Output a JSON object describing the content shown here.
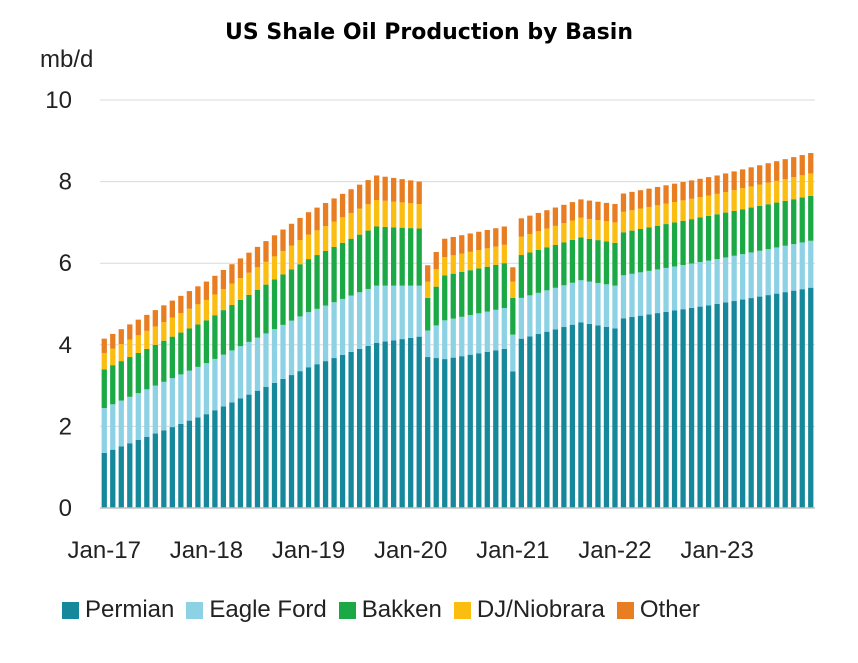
{
  "chart_data": {
    "type": "bar",
    "stacked": true,
    "title": "US Shale Oil Production by Basin",
    "ylabel": "mb/d",
    "xlabel": "",
    "ylim": [
      0,
      10
    ],
    "yticks": [
      0,
      2,
      4,
      6,
      8,
      10
    ],
    "x_start": "Jan-17",
    "x_end": "Dec-23",
    "xtick_labels": [
      "Jan-17",
      "Jan-18",
      "Jan-19",
      "Jan-20",
      "Jan-21",
      "Jan-22",
      "Jan-23"
    ],
    "grid": "horizontal",
    "legend_position": "bottom",
    "series": [
      {
        "name": "Permian",
        "color": "#15889c",
        "anchors": [
          [
            0,
            1.35
          ],
          [
            12,
            2.3
          ],
          [
            24,
            3.45
          ],
          [
            32,
            4.05
          ],
          [
            37,
            4.2
          ],
          [
            38,
            3.7
          ],
          [
            40,
            3.65
          ],
          [
            47,
            3.9
          ],
          [
            48,
            3.35
          ],
          [
            49,
            4.15
          ],
          [
            56,
            4.55
          ],
          [
            60,
            4.4
          ],
          [
            61,
            4.65
          ],
          [
            72,
            5.0
          ],
          [
            83,
            5.4
          ]
        ]
      },
      {
        "name": "Eagle Ford",
        "color": "#8dd2e4",
        "anchors": [
          [
            0,
            1.1
          ],
          [
            12,
            1.25
          ],
          [
            24,
            1.35
          ],
          [
            32,
            1.4
          ],
          [
            37,
            1.25
          ],
          [
            38,
            0.65
          ],
          [
            40,
            0.95
          ],
          [
            47,
            1.0
          ],
          [
            48,
            0.9
          ],
          [
            49,
            1.0
          ],
          [
            60,
            1.05
          ],
          [
            72,
            1.1
          ],
          [
            83,
            1.15
          ]
        ]
      },
      {
        "name": "Bakken",
        "color": "#1ba945",
        "anchors": [
          [
            0,
            0.95
          ],
          [
            12,
            1.05
          ],
          [
            24,
            1.3
          ],
          [
            32,
            1.45
          ],
          [
            37,
            1.4
          ],
          [
            38,
            0.8
          ],
          [
            40,
            1.1
          ],
          [
            47,
            1.1
          ],
          [
            48,
            0.9
          ],
          [
            49,
            1.05
          ],
          [
            60,
            1.05
          ],
          [
            72,
            1.1
          ],
          [
            83,
            1.1
          ]
        ]
      },
      {
        "name": "DJ/Niobrara",
        "color": "#fbbd0f",
        "anchors": [
          [
            0,
            0.4
          ],
          [
            12,
            0.5
          ],
          [
            24,
            0.6
          ],
          [
            32,
            0.65
          ],
          [
            37,
            0.6
          ],
          [
            38,
            0.4
          ],
          [
            40,
            0.45
          ],
          [
            47,
            0.45
          ],
          [
            48,
            0.4
          ],
          [
            49,
            0.45
          ],
          [
            60,
            0.5
          ],
          [
            72,
            0.5
          ],
          [
            83,
            0.55
          ]
        ]
      },
      {
        "name": "Other",
        "color": "#e87d22",
        "anchors": [
          [
            0,
            0.35
          ],
          [
            12,
            0.45
          ],
          [
            24,
            0.55
          ],
          [
            32,
            0.6
          ],
          [
            37,
            0.55
          ],
          [
            38,
            0.4
          ],
          [
            40,
            0.45
          ],
          [
            47,
            0.45
          ],
          [
            48,
            0.35
          ],
          [
            49,
            0.45
          ],
          [
            60,
            0.45
          ],
          [
            72,
            0.45
          ],
          [
            83,
            0.5
          ]
        ]
      }
    ]
  }
}
